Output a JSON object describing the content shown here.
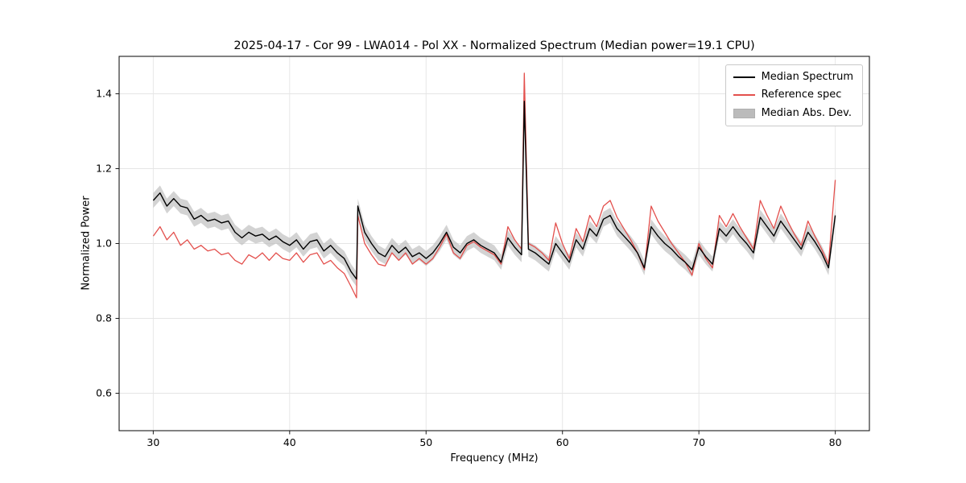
{
  "figure": {
    "background": "#ffffff"
  },
  "chart_data": {
    "type": "line",
    "title": "2025-04-17 - Cor 99 - LWA014 - Pol XX - Normalized Spectrum (Median power=19.1 CPU)",
    "xlabel": "Frequency (MHz)",
    "ylabel": "Normalized Power",
    "xlim": [
      27.5,
      82.5
    ],
    "ylim": [
      0.5,
      1.5
    ],
    "grid": true,
    "grid_color": "#e5e5e5",
    "spine_color": "#1a1a1a",
    "legend_position": "upper right",
    "xticks": [
      {
        "value": 30,
        "label": "30"
      },
      {
        "value": 40,
        "label": "40"
      },
      {
        "value": 50,
        "label": "50"
      },
      {
        "value": 60,
        "label": "60"
      },
      {
        "value": 70,
        "label": "70"
      },
      {
        "value": 80,
        "label": "80"
      }
    ],
    "yticks": [
      {
        "value": 0.6,
        "label": "0.6"
      },
      {
        "value": 0.8,
        "label": "0.8"
      },
      {
        "value": 1.0,
        "label": "1.0"
      },
      {
        "value": 1.2,
        "label": "1.2"
      },
      {
        "value": 1.4,
        "label": "1.4"
      }
    ],
    "x": [
      30,
      30.5,
      31,
      31.5,
      32,
      32.5,
      33,
      33.5,
      34,
      34.5,
      35,
      35.5,
      36,
      36.5,
      37,
      37.5,
      38,
      38.5,
      39,
      39.5,
      40,
      40.5,
      41,
      41.5,
      42,
      42.5,
      43,
      43.5,
      44,
      44.5,
      44.9,
      45,
      45.5,
      46,
      46.5,
      47,
      47.5,
      48,
      48.5,
      49,
      49.5,
      50,
      50.5,
      51,
      51.5,
      52,
      52.5,
      53,
      53.5,
      54,
      54.5,
      55,
      55.5,
      56,
      56.5,
      57,
      57.2,
      57.5,
      58,
      58.5,
      59,
      59.5,
      60,
      60.5,
      61,
      61.5,
      62,
      62.5,
      63,
      63.5,
      64,
      64.5,
      65,
      65.5,
      66,
      66.5,
      67,
      67.5,
      68,
      68.5,
      69,
      69.5,
      70,
      70.5,
      71,
      71.5,
      72,
      72.5,
      73,
      73.5,
      74,
      74.5,
      75,
      75.5,
      76,
      76.5,
      77,
      77.5,
      78,
      78.5,
      79,
      79.5,
      80
    ],
    "series": [
      {
        "name": "Median Spectrum",
        "color": "#000000",
        "width": 1.4,
        "values": [
          1.115,
          1.135,
          1.1,
          1.12,
          1.1,
          1.095,
          1.065,
          1.075,
          1.06,
          1.065,
          1.055,
          1.06,
          1.03,
          1.015,
          1.03,
          1.02,
          1.025,
          1.01,
          1.02,
          1.005,
          0.995,
          1.01,
          0.985,
          1.005,
          1.01,
          0.98,
          0.995,
          0.975,
          0.96,
          0.925,
          0.905,
          1.1,
          1.03,
          1.0,
          0.975,
          0.965,
          0.995,
          0.975,
          0.99,
          0.965,
          0.975,
          0.96,
          0.975,
          1.0,
          1.03,
          0.99,
          0.975,
          1.0,
          1.01,
          0.995,
          0.985,
          0.975,
          0.95,
          1.015,
          0.99,
          0.97,
          1.38,
          0.985,
          0.975,
          0.96,
          0.945,
          1.0,
          0.975,
          0.95,
          1.01,
          0.985,
          1.04,
          1.02,
          1.065,
          1.075,
          1.04,
          1.02,
          1.0,
          0.975,
          0.935,
          1.045,
          1.02,
          1.0,
          0.985,
          0.965,
          0.95,
          0.93,
          0.99,
          0.965,
          0.945,
          1.04,
          1.02,
          1.045,
          1.02,
          1.0,
          0.975,
          1.07,
          1.045,
          1.02,
          1.06,
          1.035,
          1.01,
          0.985,
          1.03,
          1.005,
          0.975,
          0.935,
          1.075
        ]
      },
      {
        "name": "Reference spec",
        "color": "#e3504d",
        "width": 1.3,
        "values": [
          1.02,
          1.045,
          1.01,
          1.03,
          0.995,
          1.01,
          0.985,
          0.995,
          0.98,
          0.985,
          0.97,
          0.975,
          0.955,
          0.945,
          0.97,
          0.96,
          0.975,
          0.955,
          0.975,
          0.96,
          0.955,
          0.975,
          0.95,
          0.97,
          0.975,
          0.945,
          0.955,
          0.935,
          0.92,
          0.885,
          0.855,
          1.075,
          1.0,
          0.97,
          0.945,
          0.94,
          0.975,
          0.955,
          0.975,
          0.945,
          0.96,
          0.945,
          0.96,
          0.99,
          1.025,
          0.975,
          0.96,
          0.995,
          1.005,
          0.99,
          0.98,
          0.97,
          0.945,
          1.045,
          1.01,
          0.985,
          1.455,
          1.0,
          0.99,
          0.975,
          0.955,
          1.055,
          1.0,
          0.96,
          1.04,
          1.005,
          1.075,
          1.045,
          1.1,
          1.115,
          1.07,
          1.04,
          1.01,
          0.975,
          0.93,
          1.1,
          1.06,
          1.03,
          1.0,
          0.975,
          0.95,
          0.915,
          1.0,
          0.96,
          0.935,
          1.075,
          1.045,
          1.08,
          1.045,
          1.015,
          0.985,
          1.115,
          1.075,
          1.04,
          1.1,
          1.06,
          1.025,
          0.995,
          1.06,
          1.02,
          0.985,
          0.945,
          1.17
        ]
      }
    ],
    "band": {
      "label": "Median Abs. Dev.",
      "around": "Median Spectrum",
      "halfwidth": 0.02,
      "color": "#bbbbbb",
      "opacity": 0.65
    }
  }
}
